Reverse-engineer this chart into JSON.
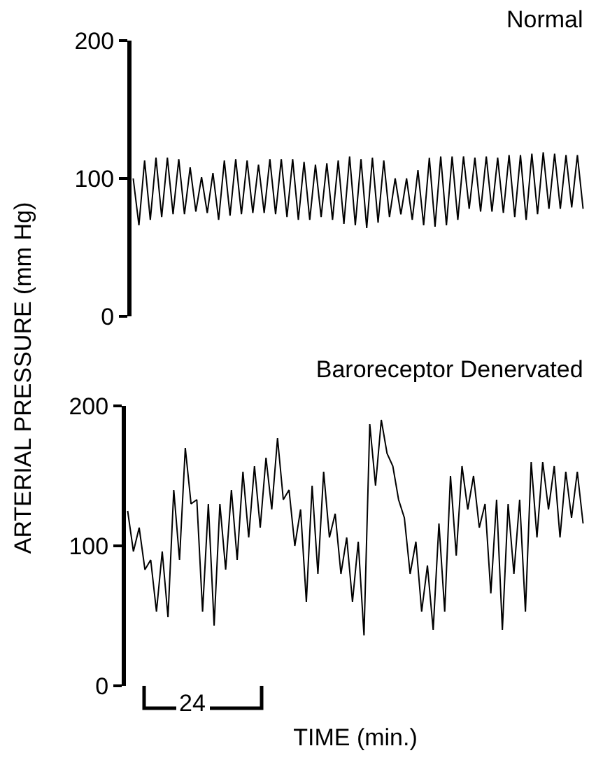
{
  "chart_data": [
    {
      "type": "line",
      "title": "Normal",
      "ylabel": "ARTERIAL PRESSURE (mm Hg)",
      "ylim": [
        0,
        200
      ],
      "yticks": [
        0,
        100,
        200
      ],
      "grid": false,
      "tick_labels": "y",
      "marker": "none",
      "categories": [
        null,
        null,
        null,
        null,
        null,
        null,
        null,
        null,
        null,
        null,
        null,
        null,
        null,
        null,
        null,
        null,
        null,
        null,
        null,
        null,
        null,
        null,
        null,
        null,
        null,
        null,
        null,
        null,
        null,
        null,
        null,
        null,
        null,
        null,
        null,
        null,
        null,
        null,
        null,
        null,
        null,
        null,
        null,
        null,
        null,
        null,
        null,
        null,
        null,
        null,
        null,
        null,
        null,
        null,
        null,
        null,
        null,
        null,
        null,
        null,
        null,
        null,
        null,
        null,
        null,
        null,
        null,
        null,
        null,
        null,
        null,
        null,
        null,
        null,
        null,
        null,
        null,
        null,
        null,
        null
      ],
      "series": [
        {
          "color": "#000000",
          "values": [
            100,
            66,
            113,
            70,
            115,
            72,
            115,
            74,
            114,
            74,
            108,
            76,
            101,
            75,
            104,
            70,
            113,
            73,
            114,
            74,
            113,
            75,
            110,
            75,
            114,
            74,
            114,
            72,
            114,
            70,
            112,
            70,
            110,
            72,
            111,
            70,
            113,
            67,
            116,
            66,
            114,
            64,
            115,
            68,
            113,
            72,
            100,
            74,
            100,
            70,
            106,
            66,
            115,
            65,
            116,
            66,
            116,
            70,
            116,
            78,
            115,
            76,
            116,
            76,
            115,
            75,
            117,
            72,
            117,
            70,
            118,
            74,
            119,
            78,
            118,
            78,
            117,
            79,
            117,
            78
          ]
        }
      ]
    },
    {
      "type": "line",
      "title": "Baroreceptor Denervated",
      "xlabel": "TIME (min.)",
      "ylim": [
        0,
        200
      ],
      "yticks": [
        0,
        100,
        200
      ],
      "grid": false,
      "tick_labels": "y",
      "marker": "none",
      "annotations": [
        "24"
      ],
      "categories": [
        null,
        null,
        null,
        null,
        null,
        null,
        null,
        null,
        null,
        null,
        null,
        null,
        null,
        null,
        null,
        null,
        null,
        null,
        null,
        null,
        null,
        null,
        null,
        null,
        null,
        null,
        null,
        null,
        null,
        null,
        null,
        null,
        null,
        null,
        null,
        null,
        null,
        null,
        null,
        null,
        null,
        null,
        null,
        null,
        null,
        null,
        null,
        null,
        null,
        null,
        null,
        null,
        null,
        null,
        null,
        null,
        null,
        null,
        null,
        null,
        null,
        null,
        null,
        null,
        null,
        null,
        null,
        null,
        null,
        null,
        null,
        null,
        null,
        null,
        null,
        null,
        null,
        null,
        null,
        null
      ],
      "series": [
        {
          "color": "#000000",
          "values": [
            125,
            96,
            113,
            83,
            90,
            53,
            96,
            49,
            140,
            90,
            170,
            130,
            133,
            53,
            130,
            43,
            130,
            83,
            140,
            90,
            153,
            106,
            157,
            113,
            163,
            126,
            177,
            133,
            140,
            100,
            126,
            60,
            143,
            80,
            153,
            106,
            123,
            80,
            106,
            60,
            103,
            36,
            187,
            143,
            190,
            166,
            157,
            133,
            120,
            80,
            103,
            53,
            86,
            40,
            116,
            53,
            150,
            93,
            157,
            126,
            150,
            113,
            130,
            66,
            133,
            40,
            130,
            80,
            133,
            53,
            160,
            106,
            160,
            126,
            157,
            106,
            153,
            120,
            153,
            116
          ]
        }
      ]
    }
  ]
}
